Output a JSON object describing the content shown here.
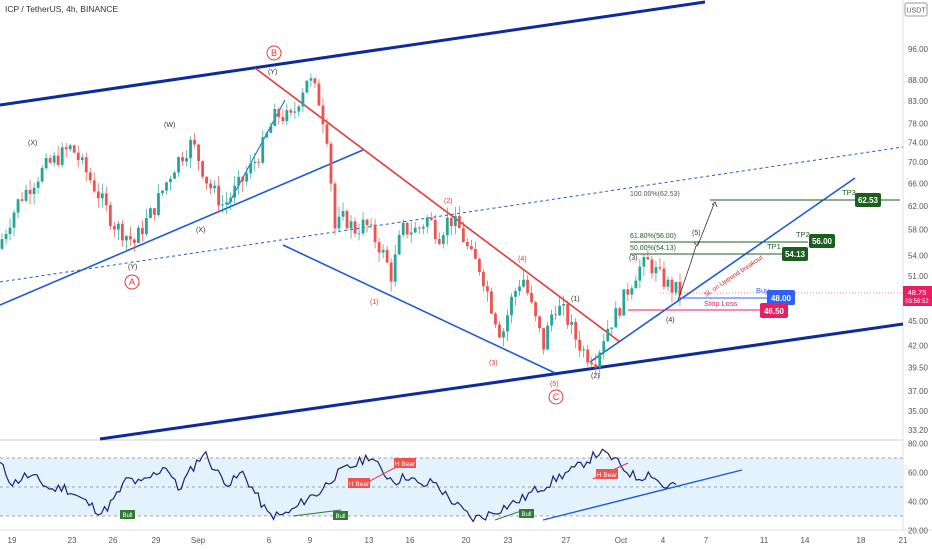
{
  "chart_data": {
    "type": "candlestick",
    "title": "ICP / TetherUS, 4h, BINANCE",
    "currency": "USDT",
    "price_axis": {
      "scale": "log",
      "ylim": [
        33.2,
        110
      ],
      "ticks": [
        "96.00",
        "88.00",
        "83.00",
        "78.00",
        "74.00",
        "70.00",
        "66.00",
        "62.00",
        "58.00",
        "54.00",
        "51.00",
        "48.00",
        "45.00",
        "42.00",
        "39.50",
        "37.00",
        "35.00",
        "33.20"
      ]
    },
    "x_axis": {
      "ticks": [
        "19",
        "23",
        "26",
        "29",
        "Sep",
        "6",
        "9",
        "13",
        "16",
        "20",
        "23",
        "27",
        "Oct",
        "4",
        "7",
        "11",
        "14",
        "18",
        "21"
      ]
    },
    "last_price": {
      "value": "48.75",
      "countdown": "03:56:52",
      "color": "#e91e63"
    },
    "price_path": [
      [
        0,
        55
      ],
      [
        4,
        63
      ],
      [
        9,
        69
      ],
      [
        14,
        73
      ],
      [
        18,
        66
      ],
      [
        22,
        59
      ],
      [
        26,
        56
      ],
      [
        30,
        62
      ],
      [
        34,
        70
      ],
      [
        37,
        74
      ],
      [
        40,
        66
      ],
      [
        43,
        62
      ],
      [
        47,
        67
      ],
      [
        50,
        72
      ],
      [
        53,
        80
      ],
      [
        56,
        79
      ],
      [
        59,
        89
      ],
      [
        61,
        84
      ],
      [
        63,
        74
      ],
      [
        64,
        58
      ],
      [
        66,
        60
      ],
      [
        68,
        58
      ],
      [
        70,
        59
      ],
      [
        73,
        55
      ],
      [
        75,
        51
      ],
      [
        77,
        58
      ],
      [
        80,
        58
      ],
      [
        82,
        60
      ],
      [
        84,
        57
      ],
      [
        86,
        60
      ],
      [
        88,
        58
      ],
      [
        90,
        54
      ],
      [
        92,
        52
      ],
      [
        94,
        47
      ],
      [
        96,
        43
      ],
      [
        98,
        48
      ],
      [
        100,
        51
      ],
      [
        102,
        46
      ],
      [
        104,
        42
      ],
      [
        106,
        47
      ],
      [
        108,
        46
      ],
      [
        110,
        43
      ],
      [
        112,
        41
      ],
      [
        114,
        40.5
      ],
      [
        116,
        44
      ],
      [
        118,
        46
      ],
      [
        120,
        49
      ],
      [
        122,
        52
      ],
      [
        124,
        53
      ],
      [
        126,
        51
      ],
      [
        128,
        49.5
      ],
      [
        130,
        48.75
      ]
    ],
    "wave_labels": {
      "major_B": "B",
      "major_A": "A",
      "major_C": "C",
      "minor": [
        "(X)",
        "(W)",
        "(X)",
        "(Y)",
        "(Y)",
        "(1)",
        "(2)",
        "(3)",
        "(4)",
        "(5)",
        "(1)",
        "(2)",
        "(3)",
        "(4)",
        "(5)"
      ]
    },
    "annotations": {
      "fib_100": "100.00%(62.53)",
      "fib_618": "61.80%(56.00)",
      "fib_50": "50.00%(54.13)",
      "breakout": "SL on Uptrend breakout",
      "tp3": {
        "label": "TP3",
        "value": "62.53"
      },
      "tp2": {
        "label": "TP2",
        "value": "56.00"
      },
      "tp1": {
        "label": "TP1",
        "value": "54.13"
      },
      "buy": {
        "label": "Buy",
        "value": "48.00"
      },
      "stop": {
        "label": "Stop Loss",
        "value": "46.50"
      }
    },
    "colors": {
      "up_candle": "#26a69a",
      "down_candle": "#ef5350",
      "channel": "#0d2b9e",
      "trendline": "#1e5bd6",
      "red_line": "#e53935",
      "tp_box": "#1b5e20",
      "buy_box": "#2962ff",
      "stop_box": "#e91e63"
    },
    "rsi": {
      "ticks": [
        "80.00",
        "60.00",
        "40.00",
        "20.00"
      ],
      "upper_band": 70,
      "lower_band": 30,
      "mid": 50,
      "values": [
        66,
        52,
        58,
        55,
        48,
        50,
        44,
        38,
        32,
        42,
        56,
        52,
        58,
        65,
        48,
        62,
        74,
        60,
        52,
        60,
        46,
        31,
        30,
        34,
        42,
        46,
        56,
        62,
        66,
        72,
        60,
        54,
        58,
        50,
        54,
        44,
        36,
        28,
        30,
        34,
        38,
        42,
        48,
        52,
        58,
        62,
        68,
        74,
        70,
        62,
        56,
        60,
        50,
        52
      ],
      "labels": {
        "bull": "Bull",
        "bear": "H Bear"
      }
    }
  }
}
